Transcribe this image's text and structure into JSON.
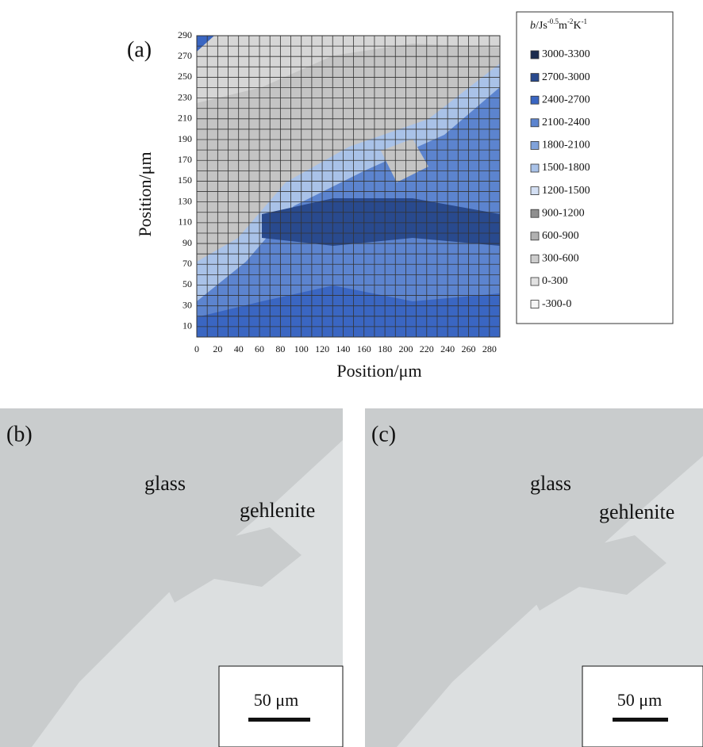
{
  "panel_a": {
    "label": "(a)",
    "x_axis_label": "Position/μm",
    "y_axis_label": "Position/μm",
    "xticks": [
      0,
      20,
      40,
      60,
      80,
      100,
      120,
      140,
      160,
      180,
      200,
      220,
      240,
      260,
      280
    ],
    "yticks": [
      10,
      30,
      50,
      70,
      90,
      110,
      130,
      150,
      170,
      190,
      210,
      230,
      250,
      270,
      290
    ],
    "legend": {
      "title_parts": [
        "b",
        "/Js",
        "-0.5",
        "m",
        "-2",
        "K",
        "-1"
      ],
      "entries": [
        {
          "label": "3000-3300",
          "color": "#1b2b4d"
        },
        {
          "label": "2700-3000",
          "color": "#294a8e"
        },
        {
          "label": "2400-2700",
          "color": "#3a66c2"
        },
        {
          "label": "2100-2400",
          "color": "#5c84cf"
        },
        {
          "label": "1800-2100",
          "color": "#80a2da"
        },
        {
          "label": "1500-1800",
          "color": "#a9c2e8"
        },
        {
          "label": "1200-1500",
          "color": "#d3dff3"
        },
        {
          "label": "900-1200",
          "color": "#8f8f8f"
        },
        {
          "label": "600-900",
          "color": "#b1b1b1"
        },
        {
          "label": "300-600",
          "color": "#cdcdcd"
        },
        {
          "label": "0-300",
          "color": "#e2e2e2"
        },
        {
          "label": "-300-0",
          "color": "#f6f6f6"
        }
      ]
    }
  },
  "panel_b": {
    "label": "(b)",
    "phase_1": "glass",
    "phase_2": "gehlenite",
    "scale_bar": "50 μm"
  },
  "panel_c": {
    "label": "(c)",
    "phase_1": "glass",
    "phase_2": "gehlenite",
    "scale_bar": "50 μm"
  }
}
